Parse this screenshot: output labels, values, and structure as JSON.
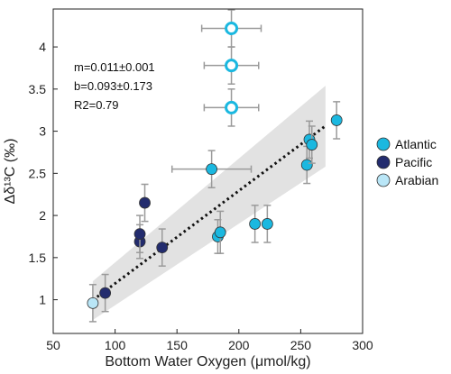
{
  "chart_data": {
    "type": "scatter",
    "xlabel": "Bottom Water Oxygen (μmol/kg)",
    "ylabel": "Δδ¹³C (‰)",
    "xlim": [
      50,
      300
    ],
    "ylim": [
      0.6,
      4.45
    ],
    "xticks": [
      "50",
      "100",
      "150",
      "200",
      "250",
      "300"
    ],
    "yticks": [
      "1",
      "1.5",
      "2",
      "2.5",
      "3",
      "3.5",
      "4"
    ],
    "annotations": [
      "m=0.011±0.001",
      "b=0.093±0.173",
      "R2=0.79"
    ],
    "regression": {
      "slope": 0.011,
      "intercept": 0.093,
      "x_range": [
        82,
        270
      ],
      "style": "dotted",
      "color": "#111111"
    },
    "confidence_band": {
      "x": [
        82,
        270
      ],
      "lower": [
        0.76,
        2.58
      ],
      "upper": [
        1.22,
        3.54
      ],
      "color": "#e2e2e2"
    },
    "legend": {
      "placement": "right"
    },
    "series": [
      {
        "name": "Atlantic",
        "color": "#1bb8e0",
        "points": [
          {
            "x": 183,
            "y": 1.75,
            "yerr": 0.2
          },
          {
            "x": 185,
            "y": 1.8,
            "yerr": 0.25
          },
          {
            "x": 213,
            "y": 1.9,
            "yerr": 0.22
          },
          {
            "x": 223,
            "y": 1.9,
            "yerr": 0.22
          },
          {
            "x": 178,
            "y": 2.55,
            "xerr": 32,
            "yerr": 0.22
          },
          {
            "x": 255,
            "y": 2.6,
            "yerr": 0.22
          },
          {
            "x": 257,
            "y": 2.9,
            "yerr": 0.22
          },
          {
            "x": 259,
            "y": 2.84,
            "yerr": 0.22
          },
          {
            "x": 279,
            "y": 3.13,
            "yerr": 0.22
          }
        ]
      },
      {
        "name": "Pacific",
        "color": "#232c6e",
        "points": [
          {
            "x": 92,
            "y": 1.08,
            "yerr": 0.22
          },
          {
            "x": 120,
            "y": 1.69,
            "yerr": 0.2
          },
          {
            "x": 120,
            "y": 1.78,
            "yerr": 0.22
          },
          {
            "x": 124,
            "y": 2.15,
            "yerr": 0.22
          },
          {
            "x": 138,
            "y": 1.62,
            "yerr": 0.22
          }
        ]
      },
      {
        "name": "Arabian",
        "color": "#b9e6f7",
        "points": [
          {
            "x": 82,
            "y": 0.96,
            "yerr": 0.22
          }
        ]
      },
      {
        "color": "#1bb8e0",
        "style": "ring",
        "points": [
          {
            "x": 194,
            "y": 4.22,
            "xerr": 24,
            "yerr": 0.22
          },
          {
            "x": 194,
            "y": 3.78,
            "xerr": 22,
            "yerr": 0.22
          },
          {
            "x": 194,
            "y": 3.28,
            "xerr": 22,
            "yerr": 0.22
          }
        ]
      }
    ]
  }
}
